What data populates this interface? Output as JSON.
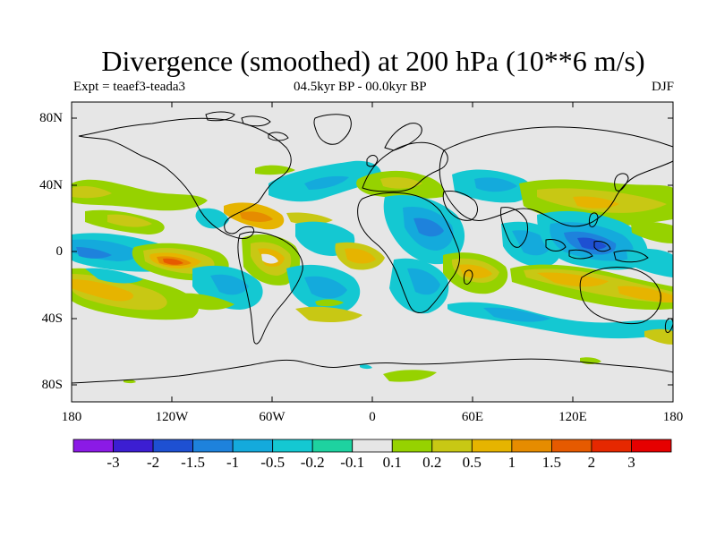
{
  "header": {
    "title": "Divergence (smoothed) at 200 hPa (10**6 m/s)",
    "experiment": "Expt = teaef3-teada3",
    "period": "04.5kyr BP - 00.0kyr BP",
    "season": "DJF"
  },
  "axes": {
    "lat_labels": [
      "80N",
      "40N",
      "0",
      "40S",
      "80S"
    ],
    "lat_values": [
      80,
      40,
      0,
      -40,
      -80
    ],
    "lon_labels": [
      "180",
      "120W",
      "60W",
      "0",
      "60E",
      "120E",
      "180"
    ],
    "lon_values": [
      -180,
      -120,
      -60,
      0,
      60,
      120,
      180
    ]
  },
  "colorbar": {
    "labels": [
      "-3",
      "-2",
      "-1.5",
      "-1",
      "-0.5",
      "-0.2",
      "-0.1",
      "0.1",
      "0.2",
      "0.5",
      "1",
      "1.5",
      "2",
      "3"
    ],
    "colors": [
      "#8b1ae6",
      "#3c1ed2",
      "#1e50d2",
      "#1e82dc",
      "#14aadc",
      "#14c8d2",
      "#1ed2a0",
      "#e6e6e6",
      "#96d200",
      "#c8c814",
      "#e6b400",
      "#e68c00",
      "#e65a00",
      "#e62800",
      "#e60000"
    ]
  },
  "field_colors": {
    "neutral": "#e6e6e6",
    "cyan": "#14c8d2",
    "lightblue": "#14aadc",
    "blue": "#1e82dc",
    "darkblue": "#1e50d2",
    "green": "#96d200",
    "yellowgreen": "#c8c814",
    "yellow": "#e6b400",
    "orange": "#e68c00",
    "darkorange": "#e65a00"
  }
}
